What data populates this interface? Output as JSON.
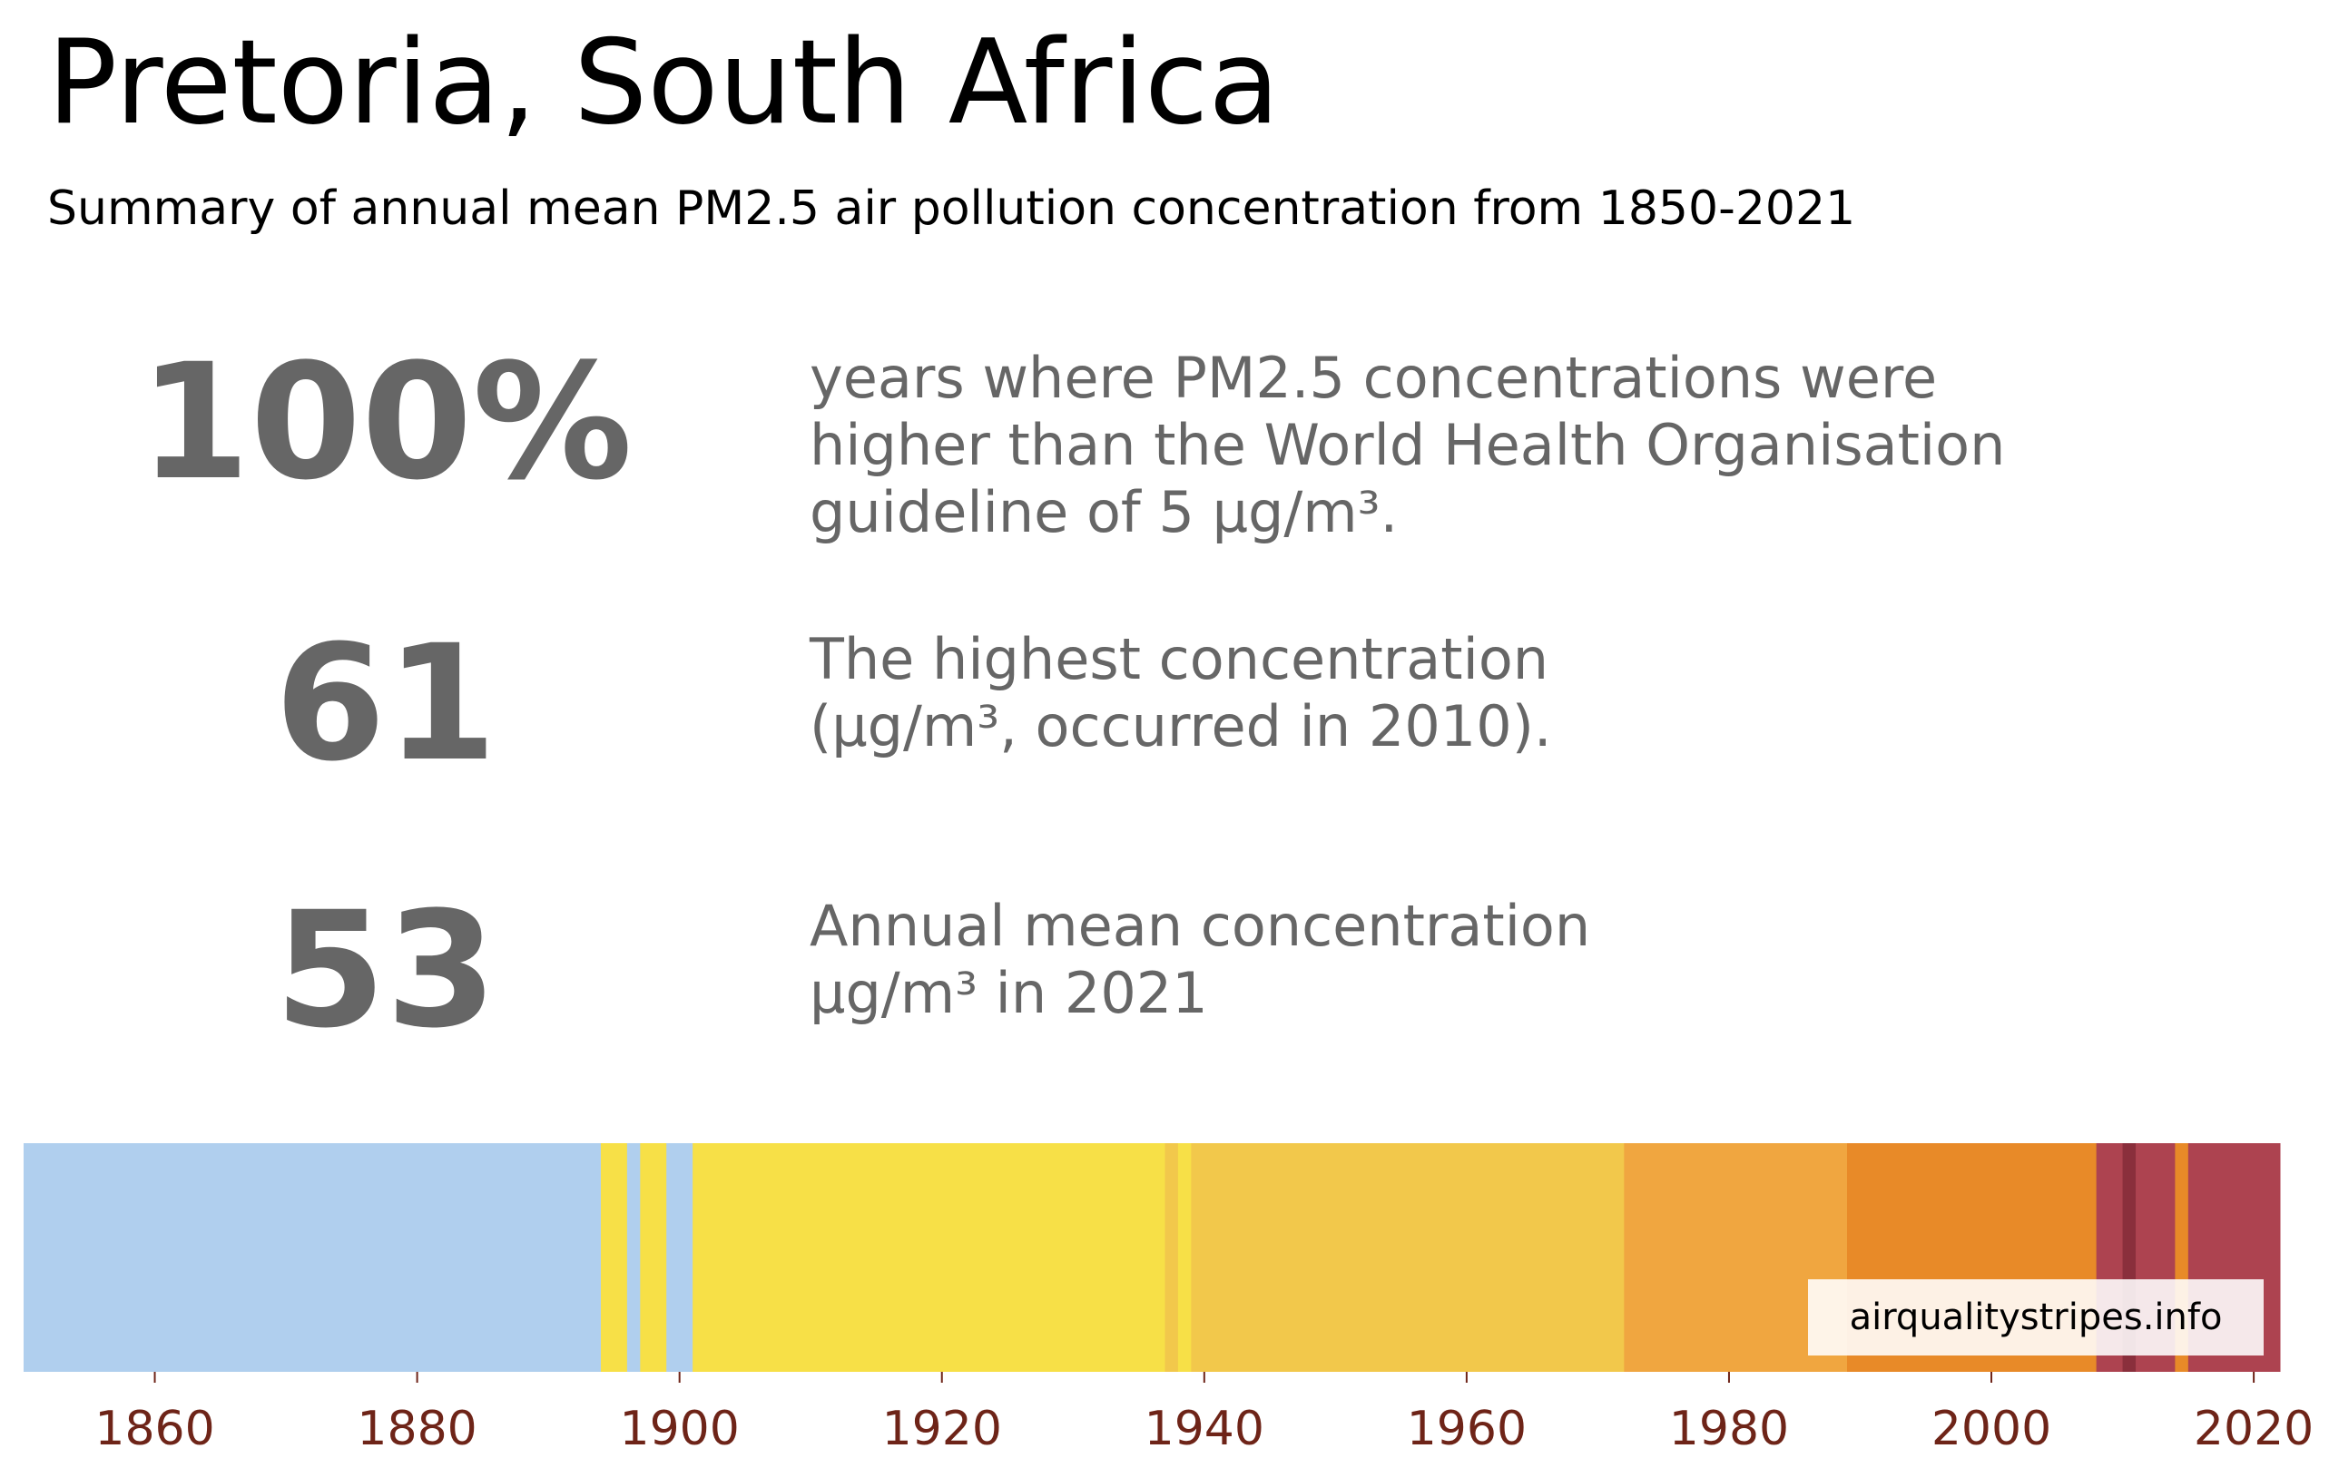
{
  "header": {
    "title": "Pretoria, South Africa",
    "subtitle": "Summary of annual mean PM2.5 air pollution concentration from 1850-2021"
  },
  "stats": [
    {
      "value": "100%",
      "lines": [
        "years where PM2.5 concentrations were",
        "higher than the World Health Organisation",
        "guideline of 5 µg/m³."
      ]
    },
    {
      "value": "61",
      "lines": [
        "The highest concentration",
        "(µg/m³, occurred in 2010)."
      ]
    },
    {
      "value": "53",
      "lines": [
        "Annual mean concentration",
        "µg/m³ in 2021"
      ]
    }
  ],
  "chart_data": {
    "type": "heatmap",
    "x_range": [
      1850,
      2022
    ],
    "x_ticks": [
      1860,
      1880,
      1900,
      1920,
      1940,
      1960,
      1980,
      2000,
      2020
    ],
    "tick_color": "#6e2418",
    "stripes": [
      {
        "start": 1850,
        "end": 1894,
        "color": "#b0cfee"
      },
      {
        "start": 1894,
        "end": 1896,
        "color": "#f7e047"
      },
      {
        "start": 1896,
        "end": 1897,
        "color": "#b0cfee"
      },
      {
        "start": 1897,
        "end": 1899,
        "color": "#f7e047"
      },
      {
        "start": 1899,
        "end": 1901,
        "color": "#b0cfee"
      },
      {
        "start": 1901,
        "end": 1937,
        "color": "#f7e047"
      },
      {
        "start": 1937,
        "end": 1938,
        "color": "#f2c84b"
      },
      {
        "start": 1938,
        "end": 1939,
        "color": "#f7e047"
      },
      {
        "start": 1939,
        "end": 1972,
        "color": "#f2c84b"
      },
      {
        "start": 1972,
        "end": 1989,
        "color": "#f0a640"
      },
      {
        "start": 1989,
        "end": 2008,
        "color": "#e88a28"
      },
      {
        "start": 2008,
        "end": 2010,
        "color": "#ad4350"
      },
      {
        "start": 2010,
        "end": 2011,
        "color": "#8a2f3c"
      },
      {
        "start": 2011,
        "end": 2014,
        "color": "#ad4350"
      },
      {
        "start": 2014,
        "end": 2015,
        "color": "#e88a28"
      },
      {
        "start": 2015,
        "end": 2022,
        "color": "#ad4350"
      }
    ],
    "credit": "airqualitystripes.info"
  }
}
